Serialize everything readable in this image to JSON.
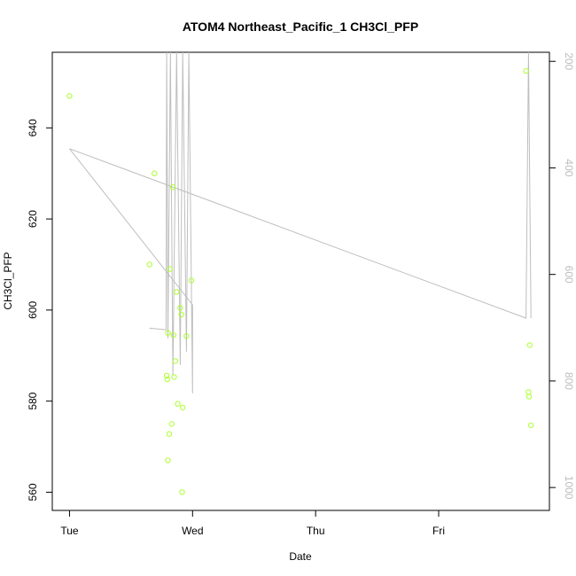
{
  "chart_data": {
    "type": "scatter",
    "title": "ATOM4 Northeast_Pacific_1 CH3Cl_PFP",
    "xlabel": "Date",
    "ylabel": "CH3Cl_PFP",
    "x_unit": "days",
    "xlim": [
      -0.14,
      3.9
    ],
    "ylim": [
      556,
      656.6
    ],
    "x_ticks": [
      {
        "value": 0,
        "label": "Tue"
      },
      {
        "value": 1,
        "label": "Wed"
      },
      {
        "value": 2,
        "label": "Thu"
      },
      {
        "value": 3,
        "label": "Fri"
      }
    ],
    "y_ticks": [
      560,
      580,
      600,
      620,
      640
    ],
    "y2_ticks": [
      200,
      400,
      600,
      800,
      1000
    ],
    "y2lim": [
      1043,
      183
    ],
    "point_color": "#adff2f",
    "line_color": "#bebebe",
    "points": [
      {
        "x": 0.0,
        "y": 647.0
      },
      {
        "x": 0.65,
        "y": 610.0
      },
      {
        "x": 0.69,
        "y": 630.0
      },
      {
        "x": 0.79,
        "y": 585.6
      },
      {
        "x": 0.795,
        "y": 584.8
      },
      {
        "x": 0.8,
        "y": 567.0
      },
      {
        "x": 0.8,
        "y": 595.0
      },
      {
        "x": 0.81,
        "y": 572.8
      },
      {
        "x": 0.815,
        "y": 609.0
      },
      {
        "x": 0.83,
        "y": 575.0
      },
      {
        "x": 0.84,
        "y": 627.0
      },
      {
        "x": 0.845,
        "y": 594.5
      },
      {
        "x": 0.85,
        "y": 585.3
      },
      {
        "x": 0.86,
        "y": 588.8
      },
      {
        "x": 0.87,
        "y": 604.0
      },
      {
        "x": 0.88,
        "y": 579.4
      },
      {
        "x": 0.9,
        "y": 600.5
      },
      {
        "x": 0.91,
        "y": 599.0
      },
      {
        "x": 0.915,
        "y": 560.0
      },
      {
        "x": 0.92,
        "y": 578.6
      },
      {
        "x": 0.95,
        "y": 594.3
      },
      {
        "x": 0.99,
        "y": 606.5
      },
      {
        "x": 3.71,
        "y": 652.5
      },
      {
        "x": 3.73,
        "y": 582.0
      },
      {
        "x": 3.735,
        "y": 581.0
      },
      {
        "x": 3.74,
        "y": 592.3
      },
      {
        "x": 3.75,
        "y": 574.7
      }
    ],
    "line": [
      {
        "x": 0.0,
        "y2": 364
      },
      {
        "x": 1.0,
        "y2": 657
      },
      {
        "x": 1.0,
        "y2": 823
      },
      {
        "x": 0.97,
        "y2": 183
      },
      {
        "x": 0.95,
        "y2": 745
      },
      {
        "x": 0.92,
        "y2": 183
      },
      {
        "x": 0.9,
        "y2": 770
      },
      {
        "x": 0.87,
        "y2": 183
      },
      {
        "x": 0.84,
        "y2": 790
      },
      {
        "x": 0.82,
        "y2": 183
      },
      {
        "x": 0.8,
        "y2": 720
      },
      {
        "x": 0.79,
        "y2": 183
      },
      {
        "x": 0.785,
        "y2": 704
      },
      {
        "x": 0.75,
        "y2": 703
      },
      {
        "x": 0.65,
        "y2": 701
      },
      {
        "x": 0.67,
        "y2": 701
      }
    ],
    "line2": [
      {
        "x": 0.0,
        "y2": 364
      },
      {
        "x": 3.71,
        "y2": 682
      },
      {
        "x": 3.73,
        "y2": 183
      },
      {
        "x": 3.75,
        "y2": 682
      }
    ]
  }
}
